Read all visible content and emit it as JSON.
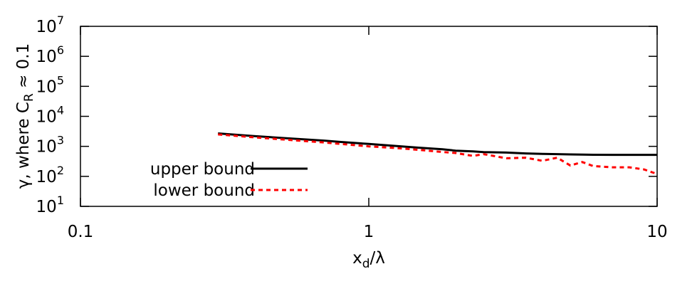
{
  "chart_data": {
    "type": "line",
    "x_label": {
      "text": "x",
      "subscript": "d",
      "text_after": "/λ"
    },
    "y_label": {
      "text": "γ,  where  C",
      "subscript": "R",
      "text_after": " ≈ 0.1"
    },
    "x": [
      0.3,
      0.4,
      0.5,
      0.7,
      0.8,
      1,
      1.3,
      1.5,
      1.8,
      2,
      2.3,
      2.5,
      3,
      3.5,
      4,
      4.5,
      5,
      5.5,
      6,
      7,
      8,
      9,
      10
    ],
    "series": [
      {
        "name": "upper bound",
        "color": "#000000",
        "dash": "solid",
        "values": [
          2700,
          2200,
          1900,
          1550,
          1400,
          1200,
          1000,
          900,
          800,
          720,
          680,
          640,
          620,
          580,
          560,
          550,
          540,
          530,
          525,
          520,
          520,
          520,
          520
        ]
      },
      {
        "name": "lower bound",
        "color": "#ff0000",
        "dash": "dashed",
        "values": [
          2500,
          2000,
          1700,
          1350,
          1200,
          1000,
          850,
          760,
          650,
          600,
          480,
          550,
          400,
          420,
          330,
          420,
          230,
          300,
          220,
          200,
          200,
          170,
          120
        ]
      }
    ],
    "x_log": true,
    "y_log": true,
    "xlim": [
      0.1,
      10
    ],
    "ylim": [
      10,
      10000000
    ],
    "xticks": [
      0.1,
      1,
      10
    ],
    "yticks": [
      {
        "value": 10,
        "label": "10",
        "exponent": "1"
      },
      {
        "value": 100,
        "label": "10",
        "exponent": "2"
      },
      {
        "value": 1000,
        "label": "10",
        "exponent": "3"
      },
      {
        "value": 10000,
        "label": "10",
        "exponent": "4"
      },
      {
        "value": 100000,
        "label": "10",
        "exponent": "5"
      },
      {
        "value": 1000000,
        "label": "10",
        "exponent": "6"
      },
      {
        "value": 10000000,
        "label": "10",
        "exponent": "7"
      }
    ],
    "legend": "lower-left"
  }
}
